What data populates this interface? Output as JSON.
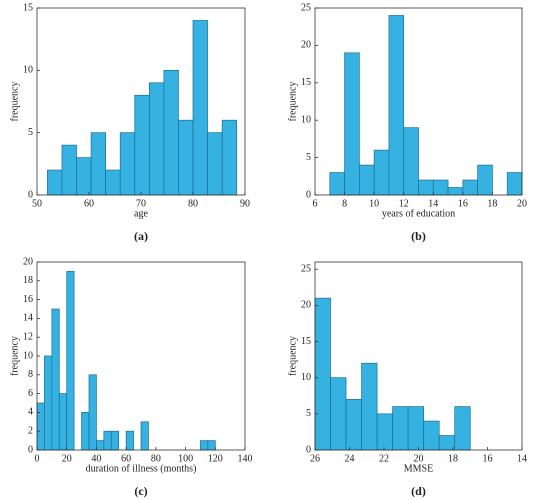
{
  "chart_data": [
    {
      "type": "histogram",
      "caption": "(a)",
      "xlabel": "age",
      "ylabel": "frequency",
      "bins": [
        52,
        54.8,
        57.6,
        60.4,
        63.2,
        66,
        68.8,
        71.6,
        74.4,
        77.2,
        80,
        82.8,
        85.6,
        88.4
      ],
      "values": [
        2,
        4,
        3,
        5,
        2,
        5,
        8,
        9,
        10,
        6,
        14,
        5,
        6
      ],
      "xlim": [
        50,
        90
      ],
      "xticks": [
        50,
        60,
        70,
        80,
        90
      ],
      "ylim": [
        0,
        15
      ],
      "yticks": [
        0,
        5,
        10,
        15
      ],
      "color": "#35b2e2"
    },
    {
      "type": "histogram",
      "caption": "(b)",
      "xlabel": "years of education",
      "ylabel": "frequency",
      "bins": [
        7,
        8,
        9,
        10,
        11,
        12,
        13,
        14,
        15,
        16,
        17,
        18,
        19,
        20
      ],
      "values": [
        3,
        19,
        4,
        6,
        24,
        9,
        2,
        2,
        1,
        2,
        4,
        0,
        3
      ],
      "xlim": [
        6,
        20
      ],
      "xticks": [
        6,
        8,
        10,
        12,
        14,
        16,
        18,
        20
      ],
      "ylim": [
        0,
        25
      ],
      "yticks": [
        0,
        5,
        10,
        15,
        20,
        25
      ],
      "color": "#35b2e2"
    },
    {
      "type": "histogram",
      "caption": "(c)",
      "xlabel": "duration of illness (months)",
      "ylabel": "frequency",
      "bins": [
        0,
        5,
        10,
        15,
        20,
        25,
        30,
        35,
        40,
        45,
        50,
        55,
        60,
        65,
        70,
        75,
        80,
        85,
        90,
        95,
        100,
        105,
        110,
        115,
        120
      ],
      "values": [
        5,
        10,
        15,
        6,
        19,
        0,
        4,
        8,
        1,
        2,
        2,
        0,
        2,
        0,
        3,
        0,
        0,
        0,
        0,
        0,
        0,
        0,
        1,
        1
      ],
      "xlim": [
        0,
        140
      ],
      "xticks": [
        0,
        20,
        40,
        60,
        80,
        100,
        120,
        140
      ],
      "ylim": [
        0,
        20
      ],
      "yticks": [
        0,
        2,
        4,
        6,
        8,
        10,
        12,
        14,
        16,
        18,
        20
      ],
      "color": "#35b2e2"
    },
    {
      "type": "histogram",
      "caption": "(d)",
      "xlabel": "MMSE",
      "ylabel": "frequency",
      "bins": [
        26,
        25.1,
        24.2,
        23.3,
        22.4,
        21.5,
        20.6,
        19.7,
        18.8,
        17.9,
        17
      ],
      "values": [
        21,
        10,
        7,
        12,
        5,
        6,
        6,
        4,
        2,
        6
      ],
      "xlim": [
        26,
        14
      ],
      "xticks": [
        26,
        24,
        22,
        20,
        18,
        16,
        14
      ],
      "ylim": [
        0,
        26
      ],
      "yticks": [
        0,
        5,
        10,
        15,
        20,
        25
      ],
      "color": "#35b2e2"
    }
  ]
}
